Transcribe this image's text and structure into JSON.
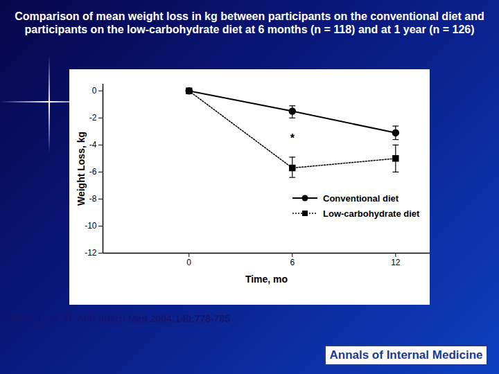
{
  "chart_data": {
    "type": "line",
    "title": "Comparison of mean weight loss in kg between participants on the conventional diet and participants on the low-carbohydrate diet at 6 months (n = 118) and at 1 year (n = 126)",
    "x_label": "Time, mo",
    "y_label": "Weight Loss, kg",
    "x": [
      0,
      6,
      12
    ],
    "series": [
      {
        "name": "Conventional diet",
        "color": "#000000",
        "marker": "circle",
        "line_style": "solid",
        "values": [
          0,
          -1.5,
          -3.1
        ],
        "error_low": [
          null,
          -2.0,
          -3.6
        ],
        "error_high": [
          null,
          -1.1,
          -2.6
        ]
      },
      {
        "name": "Low-carbohydrate diet",
        "color": "#000000",
        "marker": "square",
        "line_style": "dotted",
        "values": [
          0,
          -5.7,
          -5.0
        ],
        "error_low": [
          null,
          -6.4,
          -6.0
        ],
        "error_high": [
          null,
          -4.9,
          -4.0
        ]
      }
    ],
    "xlim": [
      -5,
      14
    ],
    "xticks": [
      0,
      6,
      12
    ],
    "ylim": [
      -12,
      0.5
    ],
    "yticks": [
      0,
      -2,
      -4,
      -6,
      -8,
      -10,
      -12
    ],
    "grid": false,
    "legend": "right",
    "annotations": [
      {
        "text": "*",
        "x": 6,
        "y": -3.5
      }
    ],
    "source": "Stern, L. et. al. Ann Intern Med 2004;140:778-785",
    "publisher": "Annals of Internal Medicine"
  }
}
